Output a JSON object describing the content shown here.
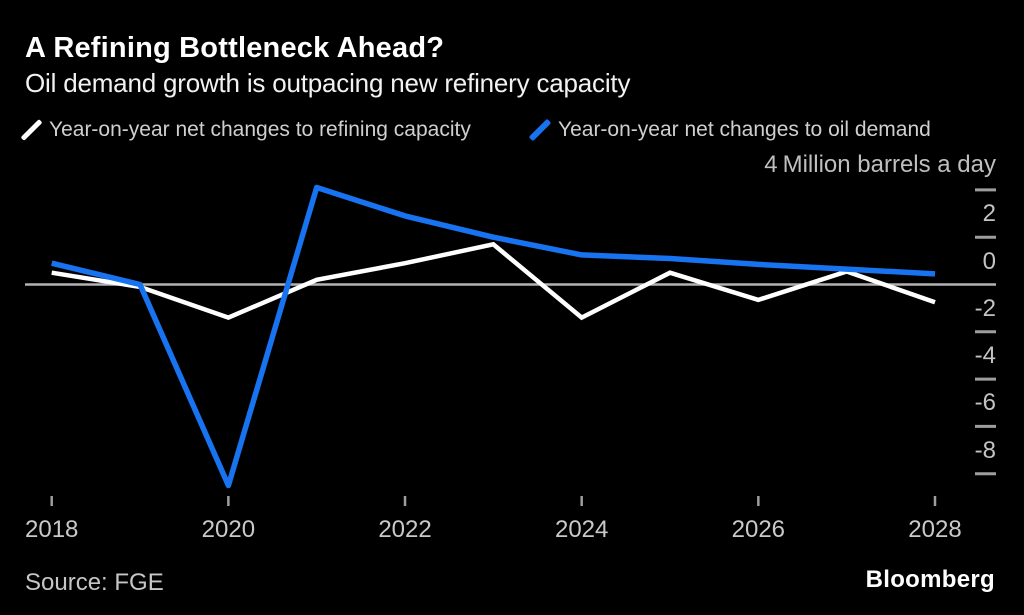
{
  "header": {
    "title": "A Refining Bottleneck Ahead?",
    "subtitle": "Oil demand growth is outpacing new refinery capacity"
  },
  "legend": {
    "items": [
      {
        "label": "Year-on-year net changes to refining capacity",
        "color": "#ffffff"
      },
      {
        "label": "Year-on-year net changes to oil demand",
        "color": "#1873f0"
      }
    ]
  },
  "axis": {
    "top_tick_label": "4",
    "unit_label": "Million barrels a day",
    "y_dash_values": [
      4,
      2,
      -2,
      -4,
      -6,
      -8
    ],
    "y_labels": [
      {
        "value": 2,
        "label": "2"
      },
      {
        "value": 0,
        "label": "0"
      },
      {
        "value": -2,
        "label": "-2"
      },
      {
        "value": -4,
        "label": "-4"
      },
      {
        "value": -6,
        "label": "-6"
      },
      {
        "value": -8,
        "label": "-8"
      }
    ],
    "x_tick_years": [
      "2018",
      "2020",
      "2022",
      "2024",
      "2026",
      "2028"
    ]
  },
  "footer": {
    "source": "Source: FGE",
    "brand": "Bloomberg"
  },
  "colors": {
    "background": "#000000",
    "accent_blue": "#1873f0",
    "zero_line": "#b3b3b3",
    "tick": "#9e9e9e",
    "axis_text": "#c3c3c3"
  },
  "chart_data": {
    "type": "line",
    "title": "A Refining Bottleneck Ahead?",
    "subtitle": "Oil demand growth is outpacing new refinery capacity",
    "xlabel": "",
    "ylabel": "Million barrels a day",
    "x": [
      2018,
      2019,
      2020,
      2021,
      2022,
      2023,
      2024,
      2025,
      2026,
      2027,
      2028
    ],
    "series": [
      {
        "name": "Year-on-year net changes to refining capacity",
        "color": "#ffffff",
        "values": [
          0.5,
          -0.1,
          -1.4,
          0.2,
          0.9,
          1.7,
          -1.4,
          0.5,
          -0.65,
          0.55,
          -0.75
        ]
      },
      {
        "name": "Year-on-year net changes to oil demand",
        "color": "#1873f0",
        "values": [
          0.9,
          0.0,
          -8.5,
          4.1,
          2.9,
          2.0,
          1.25,
          1.1,
          0.85,
          0.65,
          0.45
        ]
      }
    ],
    "ylim": [
      -9.6,
      4.4
    ],
    "xlim": [
      2018,
      2028
    ],
    "grid": "zero-line-only",
    "legend_position": "top-left",
    "y_tick_labels_shown": [
      4,
      2,
      0,
      -2,
      -4,
      -6,
      -8
    ],
    "x_tick_labels_shown": [
      2018,
      2020,
      2022,
      2024,
      2026,
      2028
    ]
  }
}
